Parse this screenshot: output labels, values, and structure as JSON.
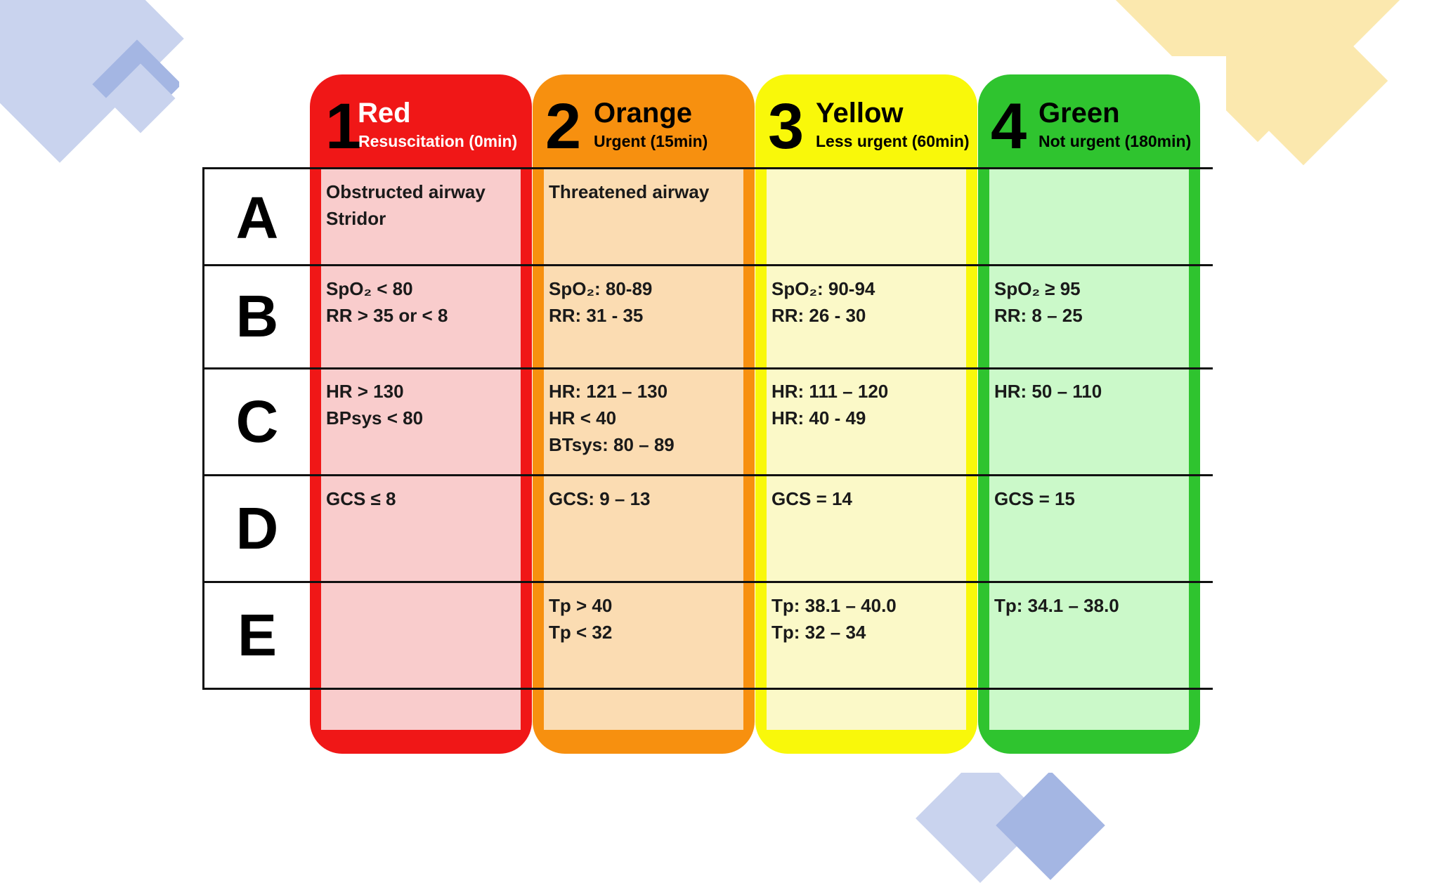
{
  "colors": {
    "red": "#f01717",
    "red_fill": "#f9cccc",
    "orange": "#f7900f",
    "orange_fill": "#fbdcb2",
    "yellow": "#f9f80a",
    "yellow_fill": "#fbf9c8",
    "green": "#2fc42f",
    "green_fill": "#cbf9c9",
    "deco_blue": "#c9d3ee",
    "deco_blue_dark": "#a4b6e3",
    "deco_yellow": "#fbe8ae"
  },
  "categories": [
    {
      "number": "1",
      "name": "Red",
      "subtitle": "Resuscitation (0min)"
    },
    {
      "number": "2",
      "name": "Orange",
      "subtitle": "Urgent (15min)"
    },
    {
      "number": "3",
      "name": "Yellow",
      "subtitle": "Less urgent (60min)"
    },
    {
      "number": "4",
      "name": "Green",
      "subtitle": "Not urgent (180min)"
    }
  ],
  "rows": [
    {
      "letter": "A",
      "cells": [
        [
          "Obstructed airway",
          "Stridor"
        ],
        [
          "Threatened airway"
        ],
        [],
        []
      ]
    },
    {
      "letter": "B",
      "cells": [
        [
          "SpO₂ < 80",
          "RR > 35 or < 8"
        ],
        [
          "SpO₂: 80-89",
          "RR: 31 - 35"
        ],
        [
          "SpO₂: 90-94",
          "RR: 26 - 30"
        ],
        [
          "SpO₂ ≥ 95",
          "RR: 8 – 25"
        ]
      ]
    },
    {
      "letter": "C",
      "cells": [
        [
          "HR > 130",
          "BPsys < 80"
        ],
        [
          "HR: 121 – 130",
          "HR < 40",
          "BTsys: 80 – 89"
        ],
        [
          "HR: 111 – 120",
          "HR: 40 - 49"
        ],
        [
          "HR: 50 – 110"
        ]
      ]
    },
    {
      "letter": "D",
      "cells": [
        [
          "GCS ≤ 8"
        ],
        [
          "GCS: 9 – 13"
        ],
        [
          "GCS = 14"
        ],
        [
          "GCS = 15"
        ]
      ]
    },
    {
      "letter": "E",
      "cells": [
        [],
        [
          "Tp > 40",
          "Tp < 32"
        ],
        [
          "Tp: 38.1 – 40.0",
          "Tp: 32 – 34"
        ],
        [
          "Tp: 34.1 – 38.0"
        ]
      ]
    }
  ]
}
